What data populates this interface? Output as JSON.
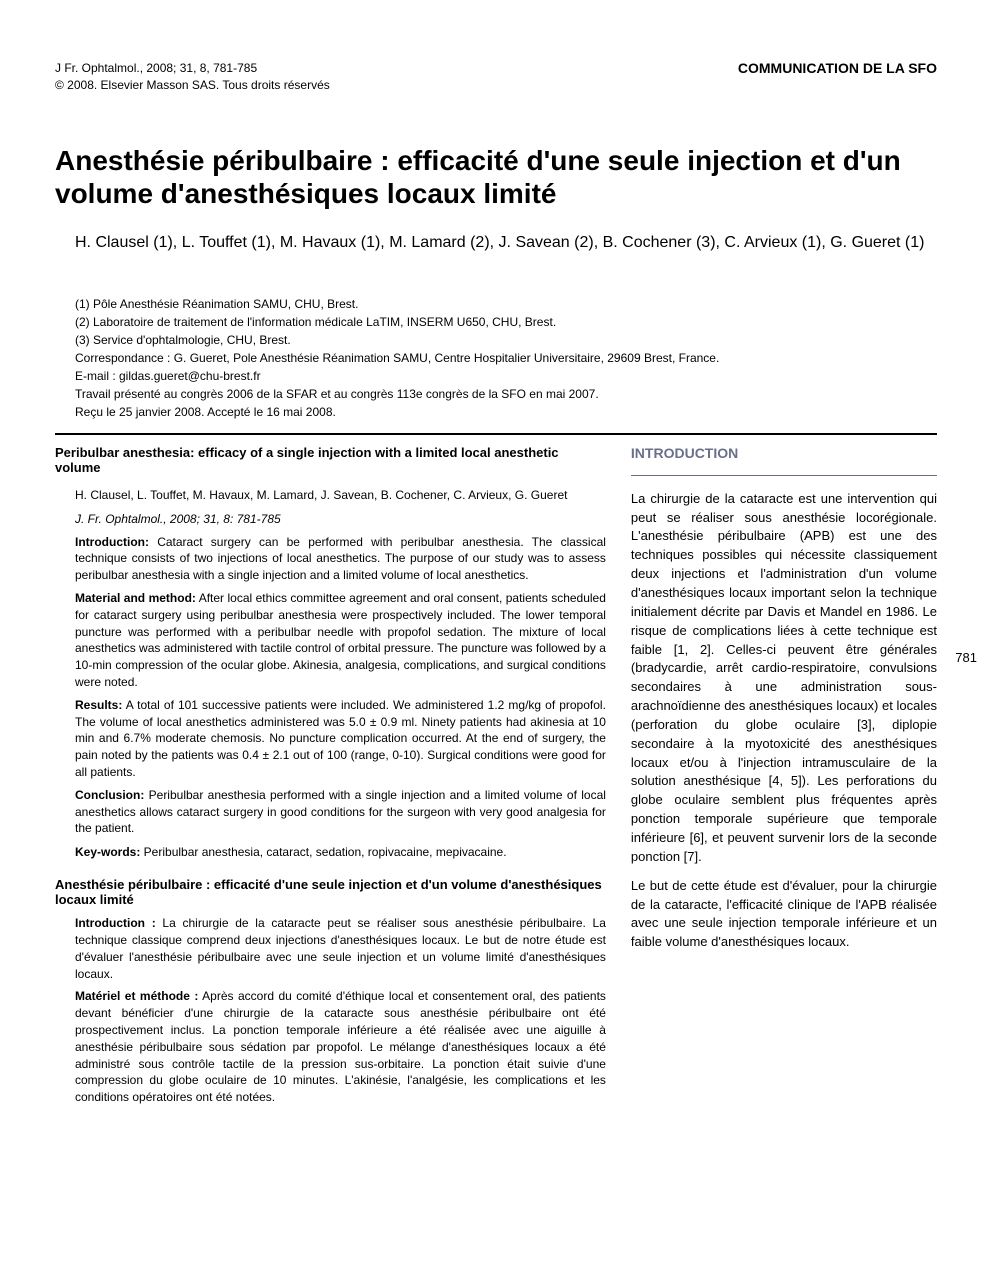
{
  "header": {
    "journal_line": "J Fr. Ophtalmol., 2008; 31, 8, 781-785",
    "copyright_line": "© 2008. Elsevier Masson SAS. Tous droits réservés",
    "communication": "COMMUNICATION DE LA SFO"
  },
  "title": "Anesthésie péribulbaire : efficacité d'une seule injection et d'un volume d'anesthésiques locaux limité",
  "authors": "H. Clausel (1), L. Touffet (1), M. Havaux (1), M. Lamard (2), J. Savean (2), B. Cochener (3), C. Arvieux (1), G. Gueret (1)",
  "affiliations": {
    "a1": "(1) Pôle Anesthésie Réanimation SAMU, CHU, Brest.",
    "a2": "(2) Laboratoire de traitement de l'information médicale LaTIM, INSERM U650, CHU, Brest.",
    "a3": "(3) Service d'ophtalmologie, CHU, Brest.",
    "corr": "Correspondance : G. Gueret, Pole Anesthésie Réanimation SAMU, Centre Hospitalier Universitaire, 29609 Brest, France.",
    "email": "E-mail : gildas.gueret@chu-brest.fr",
    "congress": "Travail présenté au congrès 2006 de la SFAR et au congrès 113e congrès de la SFO en mai 2007.",
    "received": "Reçu le 25 janvier 2008. Accepté le 16 mai 2008."
  },
  "abstract_en": {
    "title": "Peribulbar anesthesia: efficacy of a single injection with a limited local anesthetic volume",
    "authors": "H. Clausel, L. Touffet, M. Havaux, M. Lamard, J. Savean, B. Cochener, C. Arvieux, G. Gueret",
    "citation": "J. Fr. Ophtalmol., 2008; 31, 8: 781-785",
    "intro_label": "Introduction:",
    "intro_text": " Cataract surgery can be performed with peribulbar anesthesia. The classical technique consists of two injections of local anesthetics. The purpose of our study was to assess peribulbar anesthesia with a single injection and a limited volume of local anesthetics.",
    "method_label": "Material and method:",
    "method_text": " After local ethics committee agreement and oral consent, patients scheduled for cataract surgery using peribulbar anesthesia were prospectively included. The lower temporal puncture was performed with a peribulbar needle with propofol sedation. The mixture of local anesthetics was administered with tactile control of orbital pressure. The puncture was followed by a 10-min compression of the ocular globe. Akinesia, analgesia, complications, and surgical conditions were noted.",
    "results_label": "Results:",
    "results_text": " A total of 101 successive patients were included. We administered 1.2 mg/kg of propofol. The volume of local anesthetics administered was 5.0 ± 0.9 ml. Ninety patients had akinesia at 10 min and 6.7% moderate chemosis. No puncture complication occurred. At the end of surgery, the pain noted by the patients was 0.4 ± 2.1 out of 100 (range, 0-10). Surgical conditions were good for all patients.",
    "conclusion_label": "Conclusion:",
    "conclusion_text": " Peribulbar anesthesia performed with a single injection and a limited volume of local anesthetics allows cataract surgery in good conditions for the surgeon with very good analgesia for the patient.",
    "keywords_label": "Key-words:",
    "keywords_text": " Peribulbar anesthesia, cataract, sedation, ropivacaine, mepivacaine."
  },
  "abstract_fr": {
    "title": "Anesthésie péribulbaire : efficacité d'une seule injection et d'un volume d'anesthésiques locaux limité",
    "intro_label": "Introduction :",
    "intro_text": " La chirurgie de la cataracte peut se réaliser sous anesthésie péribulbaire. La technique classique comprend deux injections d'anesthésiques locaux. Le but de notre étude est d'évaluer l'anesthésie péribulbaire avec une seule injection et un volume limité d'anesthésiques locaux.",
    "method_label": "Matériel et méthode :",
    "method_text": " Après accord du comité d'éthique local et consentement oral, des patients devant bénéficier d'une chirurgie de la cataracte sous anesthésie péribulbaire ont été prospectivement inclus. La ponction temporale inférieure a été réalisée avec une aiguille à anesthésie péribulbaire sous sédation par propofol. Le mélange d'anesthésiques locaux a été administré sous contrôle tactile de la pression sus-orbitaire. La ponction était suivie d'une compression du globe oculaire de 10 minutes. L'akinésie, l'analgésie, les complications et les conditions opératoires ont été notées."
  },
  "introduction": {
    "heading": "INTRODUCTION",
    "p1": "La chirurgie de la cataracte est une intervention qui peut se réaliser sous anesthésie locorégionale. L'anesthésie péribulbaire (APB) est une des techniques possibles qui nécessite classiquement deux injections et l'administration d'un volume d'anesthésiques locaux important selon la technique initialement décrite par Davis et Mandel en 1986. Le risque de complications liées à cette technique est faible [1, 2]. Celles-ci peuvent être générales (bradycardie, arrêt cardio-respiratoire, convulsions secondaires à une administration sous-arachnoïdienne des anesthésiques locaux) et locales (perforation du globe oculaire [3], diplopie secondaire à la myotoxicité des anesthésiques locaux et/ou à l'injection intramusculaire de la solution anesthésique [4, 5]). Les perforations du globe oculaire semblent plus fréquentes après ponction temporale supérieure que temporale inférieure [6], et peuvent survenir lors de la seconde ponction [7].",
    "p2": "Le but de cette étude est d'évaluer, pour la chirurgie de la cataracte, l'efficacité clinique de l'APB réalisée avec une seule injection temporale inférieure et un faible volume d'anesthésiques locaux."
  },
  "page_number": "781",
  "colors": {
    "text": "#000000",
    "heading_accent": "#6a6f8a",
    "background": "#ffffff"
  }
}
